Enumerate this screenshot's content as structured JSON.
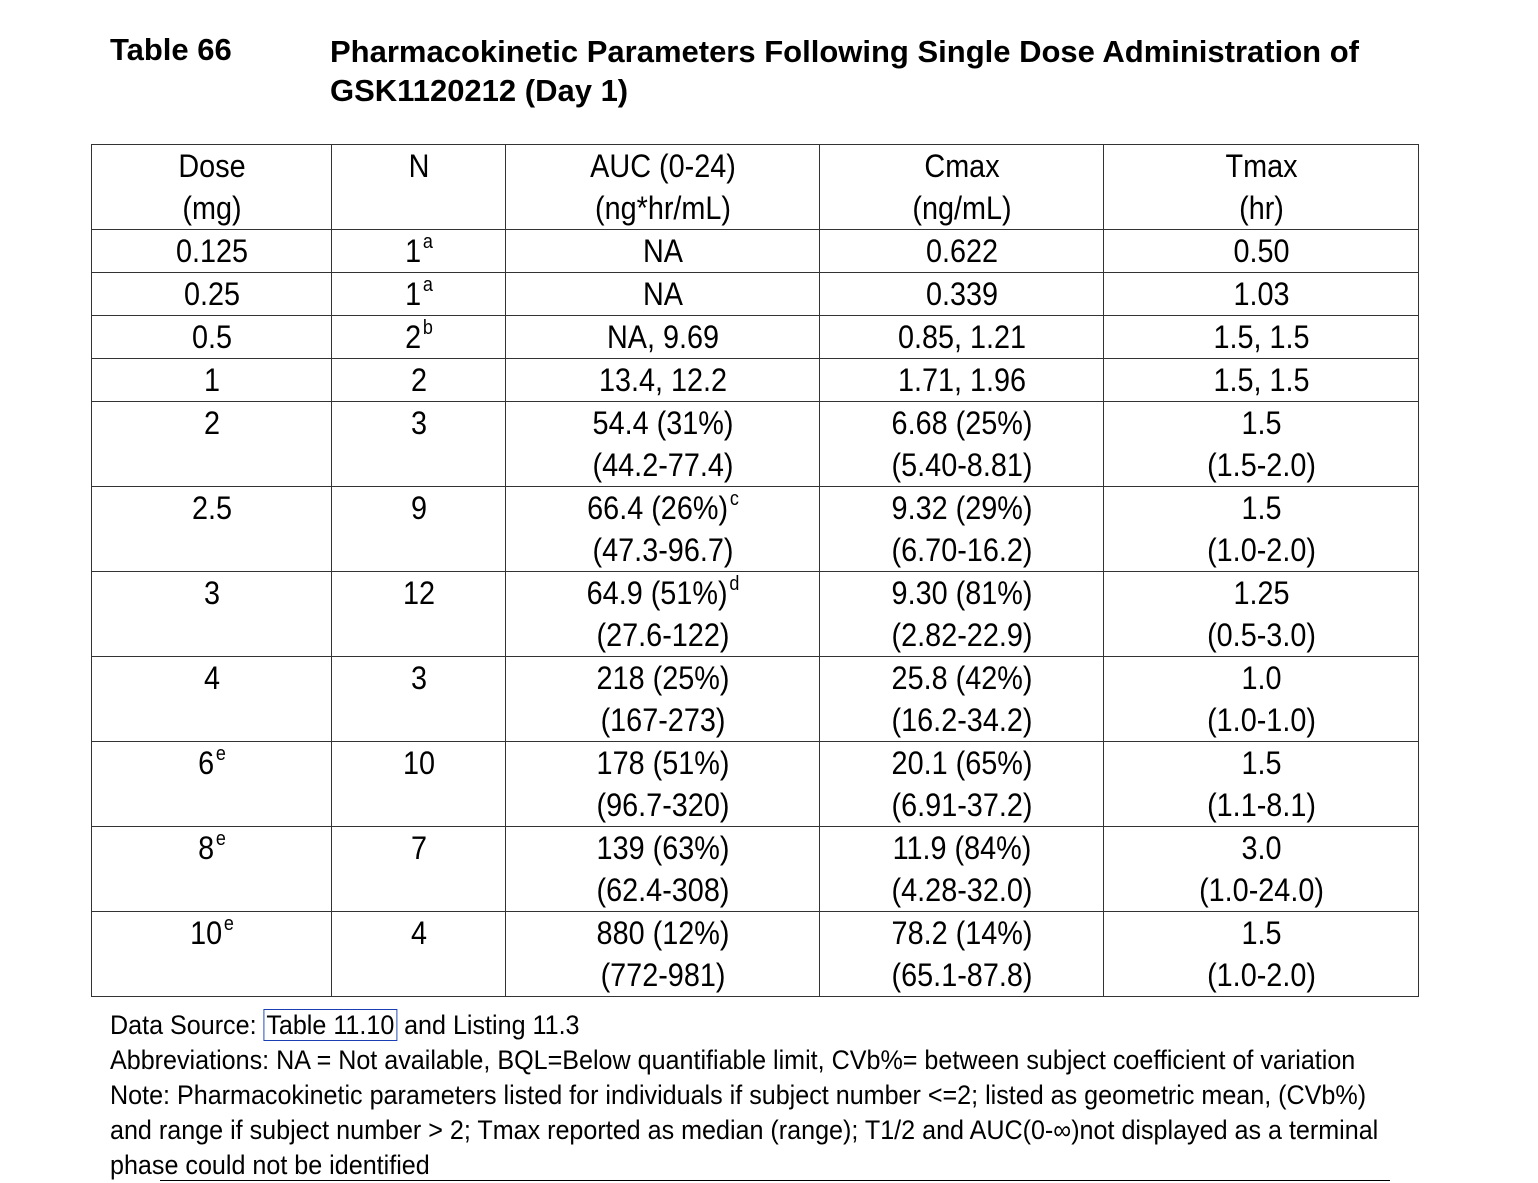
{
  "title": {
    "number": "Table 66",
    "text": "Pharmacokinetic Parameters Following Single Dose Administration of GSK1120212 (Day 1)"
  },
  "table": {
    "headers": [
      {
        "line1": "Dose",
        "line2": "(mg)"
      },
      {
        "line1": "N",
        "line2": ""
      },
      {
        "line1": "AUC (0-24)",
        "line2": "(ng*hr/mL)"
      },
      {
        "line1": "Cmax",
        "line2": "(ng/mL)"
      },
      {
        "line1": "Tmax",
        "line2": "(hr)"
      }
    ],
    "rows": [
      {
        "dose": "0.125",
        "dose_sup": "",
        "n": "1",
        "n_sup": "a",
        "auc": "NA",
        "auc_sup": "",
        "auc_range": "",
        "cmax": "0.622",
        "cmax_range": "",
        "tmax": "0.50",
        "tmax_range": ""
      },
      {
        "dose": "0.25",
        "dose_sup": "",
        "n": "1",
        "n_sup": "a",
        "auc": "NA",
        "auc_sup": "",
        "auc_range": "",
        "cmax": "0.339",
        "cmax_range": "",
        "tmax": "1.03",
        "tmax_range": ""
      },
      {
        "dose": "0.5",
        "dose_sup": "",
        "n": "2",
        "n_sup": "b",
        "auc": "NA, 9.69",
        "auc_sup": "",
        "auc_range": "",
        "cmax": "0.85, 1.21",
        "cmax_range": "",
        "tmax": "1.5, 1.5",
        "tmax_range": ""
      },
      {
        "dose": "1",
        "dose_sup": "",
        "n": "2",
        "n_sup": "",
        "auc": "13.4, 12.2",
        "auc_sup": "",
        "auc_range": "",
        "cmax": "1.71, 1.96",
        "cmax_range": "",
        "tmax": "1.5, 1.5",
        "tmax_range": ""
      },
      {
        "dose": "2",
        "dose_sup": "",
        "n": "3",
        "n_sup": "",
        "auc": "54.4 (31%)",
        "auc_sup": "",
        "auc_range": "(44.2-77.4)",
        "cmax": "6.68 (25%)",
        "cmax_range": "(5.40-8.81)",
        "tmax": "1.5",
        "tmax_range": "(1.5-2.0)"
      },
      {
        "dose": "2.5",
        "dose_sup": "",
        "n": "9",
        "n_sup": "",
        "auc": "66.4 (26%)",
        "auc_sup": "c",
        "auc_range": "(47.3-96.7)",
        "cmax": "9.32 (29%)",
        "cmax_range": "(6.70-16.2)",
        "tmax": "1.5",
        "tmax_range": "(1.0-2.0)"
      },
      {
        "dose": "3",
        "dose_sup": "",
        "n": "12",
        "n_sup": "",
        "auc": "64.9 (51%)",
        "auc_sup": "d",
        "auc_range": "(27.6-122)",
        "cmax": "9.30 (81%)",
        "cmax_range": "(2.82-22.9)",
        "tmax": "1.25",
        "tmax_range": "(0.5-3.0)"
      },
      {
        "dose": "4",
        "dose_sup": "",
        "n": "3",
        "n_sup": "",
        "auc": "218 (25%)",
        "auc_sup": "",
        "auc_range": "(167-273)",
        "cmax": "25.8 (42%)",
        "cmax_range": "(16.2-34.2)",
        "tmax": "1.0",
        "tmax_range": "(1.0-1.0)"
      },
      {
        "dose": "6",
        "dose_sup": "e",
        "n": "10",
        "n_sup": "",
        "auc": "178 (51%)",
        "auc_sup": "",
        "auc_range": "(96.7-320)",
        "cmax": "20.1 (65%)",
        "cmax_range": "(6.91-37.2)",
        "tmax": "1.5",
        "tmax_range": "(1.1-8.1)"
      },
      {
        "dose": "8",
        "dose_sup": "e",
        "n": "7",
        "n_sup": "",
        "auc": "139 (63%)",
        "auc_sup": "",
        "auc_range": "(62.4-308)",
        "cmax": "11.9 (84%)",
        "cmax_range": "(4.28-32.0)",
        "tmax": "3.0",
        "tmax_range": "(1.0-24.0)"
      },
      {
        "dose": "10",
        "dose_sup": "e",
        "n": "4",
        "n_sup": "",
        "auc": "880 (12%)",
        "auc_sup": "",
        "auc_range": "(772-981)",
        "cmax": "78.2 (14%)",
        "cmax_range": "(65.1-87.8)",
        "tmax": "1.5",
        "tmax_range": "(1.0-2.0)"
      }
    ]
  },
  "notes": {
    "source_prefix": "Data Source: ",
    "source_link": "Table 11.10",
    "source_suffix": " and Listing 11.3",
    "abbreviations": "Abbreviations: NA = Not available, BQL=Below quantifiable limit, CVb%= between subject coefficient of variation",
    "note_line1": "Note: Pharmacokinetic parameters listed for individuals if subject number <=2; listed as geometric mean, (CVb%)",
    "note_line2": "and range if subject number > 2;   Tmax reported as median (range); T1/2 and AUC(0-∞)not displayed as a terminal",
    "note_line3": "phase could not be identified"
  }
}
